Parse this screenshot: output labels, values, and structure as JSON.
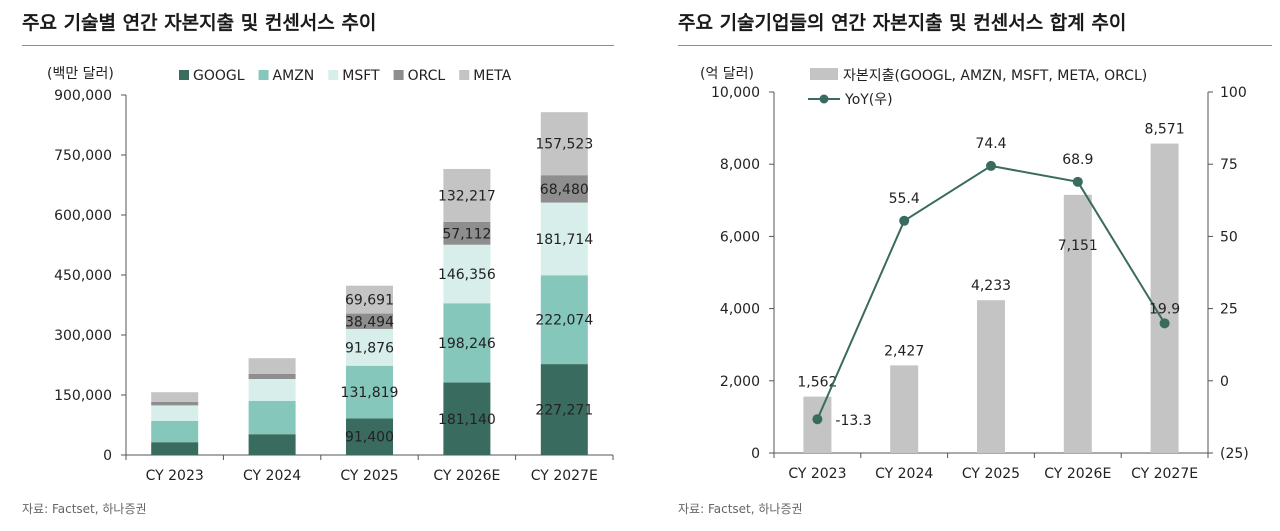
{
  "left": {
    "title": "주요 기술별 연간 자본지출 및 컨센서스 추이",
    "source": "자료: Factset, 하나증권",
    "chart_data": {
      "type": "bar",
      "stacked": true,
      "unit_label": "(백만 달러)",
      "categories": [
        "CY 2023",
        "CY 2024",
        "CY 2025",
        "CY 2026E",
        "CY 2027E"
      ],
      "ylim": [
        0,
        900000
      ],
      "yticks": [
        0,
        150000,
        300000,
        450000,
        600000,
        750000,
        900000
      ],
      "ytick_labels": [
        "0",
        "150,000",
        "300,000",
        "450,000",
        "600,000",
        "750,000",
        "900,000"
      ],
      "legend_position": "top",
      "grid": false,
      "series": [
        {
          "name": "GOOGL",
          "color": "#3a6b5f",
          "values": [
            32000,
            52000,
            91400,
            181140,
            227271
          ],
          "labels": [
            "",
            "",
            "91,400",
            "181,140",
            "227,271"
          ],
          "label_color": "#ffffff"
        },
        {
          "name": "AMZN",
          "color": "#86c7bb",
          "values": [
            53000,
            83000,
            131819,
            198246,
            222074
          ],
          "labels": [
            "",
            "",
            "131,819",
            "198,246",
            "222,074"
          ],
          "label_color": "#222222"
        },
        {
          "name": "MSFT",
          "color": "#d8eeeb",
          "values": [
            39000,
            55000,
            91876,
            146356,
            181714
          ],
          "labels": [
            "",
            "",
            "91,876",
            "146,356",
            "181,714"
          ],
          "label_color": "#222222"
        },
        {
          "name": "ORCL",
          "color": "#8e8e8e",
          "values": [
            9000,
            13000,
            38494,
            57112,
            68480
          ],
          "labels": [
            "",
            "",
            "38,494",
            "57,112",
            "68,480"
          ],
          "label_color": "#222222"
        },
        {
          "name": "META",
          "color": "#c4c4c4",
          "values": [
            24000,
            39000,
            69691,
            132217,
            157523
          ],
          "labels": [
            "",
            "",
            "69,691",
            "132,217",
            "157,523"
          ],
          "label_color": "#222222"
        }
      ]
    }
  },
  "right": {
    "title": "주요 기술기업들의 연간 자본지출 및 컨센서스 합계 추이",
    "source": "자료: Factset, 하나증권",
    "chart_data": {
      "type": "bar",
      "unit_label": "(억 달러)",
      "categories": [
        "CY 2023",
        "CY 2024",
        "CY 2025",
        "CY 2026E",
        "CY 2027E"
      ],
      "legend_position": "top",
      "grid": false,
      "series": [
        {
          "name": "자본지출(GOOGL, AMZN, MSFT, META, ORCL)",
          "kind": "bar",
          "axis": "left",
          "color": "#c4c4c4",
          "values": [
            1562,
            2427,
            4233,
            7151,
            8571
          ],
          "labels": [
            "1,562",
            "2,427",
            "4,233",
            "7,151",
            "8,571"
          ]
        },
        {
          "name": "YoY(우)",
          "kind": "line",
          "axis": "right",
          "color": "#3a6b5f",
          "values": [
            -13.3,
            55.4,
            74.4,
            68.9,
            19.9
          ],
          "labels": [
            "-13.3",
            "55.4",
            "74.4",
            "68.9",
            "19.9"
          ]
        }
      ],
      "ylim_left": [
        0,
        10000
      ],
      "yticks_left": [
        0,
        2000,
        4000,
        6000,
        8000,
        10000
      ],
      "ytick_labels_left": [
        "0",
        "2,000",
        "4,000",
        "6,000",
        "8,000",
        "10,000"
      ],
      "ylim_right": [
        -25,
        100
      ],
      "yticks_right": [
        -25,
        0,
        25,
        50,
        75,
        100
      ],
      "ytick_labels_right": [
        "(25)",
        "0",
        "25",
        "50",
        "75",
        "100"
      ]
    }
  }
}
